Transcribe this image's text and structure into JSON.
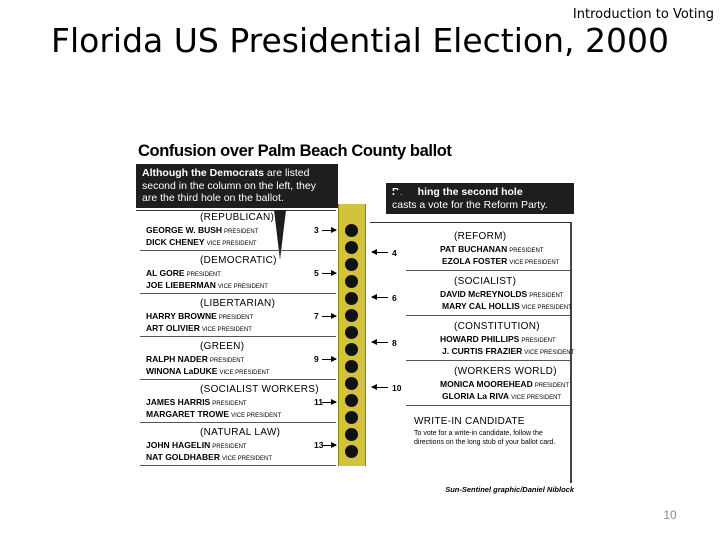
{
  "slide": {
    "header": "Introduction to Voting",
    "title": "Florida US Presidential Election, 2000",
    "page_number": "10"
  },
  "figure": {
    "title": "Confusion over Palm Beach County ballot",
    "callout_left_strong": "Although the Democrats",
    "callout_left_rest": "are listed second in the column on the left, they are the third hole on the ballot.",
    "callout_right_strong": "Punching the second hole",
    "callout_right_rest": "casts a vote for the Reform Party.",
    "role_president": "PRESIDENT",
    "role_vice": "VICE PRESIDENT",
    "left_page": [
      {
        "party": "(REPUBLICAN)",
        "president": "GEORGE W. BUSH",
        "vice": "DICK CHENEY",
        "number": "3"
      },
      {
        "party": "(DEMOCRATIC)",
        "president": "AL GORE",
        "vice": "JOE LIEBERMAN",
        "number": "5"
      },
      {
        "party": "(LIBERTARIAN)",
        "president": "HARRY BROWNE",
        "vice": "ART OLIVIER",
        "number": "7"
      },
      {
        "party": "(GREEN)",
        "president": "RALPH NADER",
        "vice": "WINONA LaDUKE",
        "number": "9"
      },
      {
        "party": "(SOCIALIST WORKERS)",
        "president": "JAMES HARRIS",
        "vice": "MARGARET TROWE",
        "number": "11"
      },
      {
        "party": "(NATURAL LAW)",
        "president": "JOHN HAGELIN",
        "vice": "NAT GOLDHABER",
        "number": "13"
      }
    ],
    "right_page": [
      {
        "party": "(REFORM)",
        "president": "PAT BUCHANAN",
        "vice": "EZOLA FOSTER",
        "number": "4"
      },
      {
        "party": "(SOCIALIST)",
        "president": "DAVID McREYNOLDS",
        "vice": "MARY CAL HOLLIS",
        "number": "6"
      },
      {
        "party": "(CONSTITUTION)",
        "president": "HOWARD PHILLIPS",
        "vice": "J. CURTIS FRAZIER",
        "number": "8"
      },
      {
        "party": "(WORKERS WORLD)",
        "president": "MONICA MOOREHEAD",
        "vice": "GLORIA La RIVA",
        "number": "10"
      }
    ],
    "write_in_title": "WRITE-IN CANDIDATE",
    "write_in_note": "To vote for a write-in candidate, follow the directions on the long stub of your ballot card.",
    "credit": "Sun-Sentinel graphic/Daniel Niblock"
  }
}
